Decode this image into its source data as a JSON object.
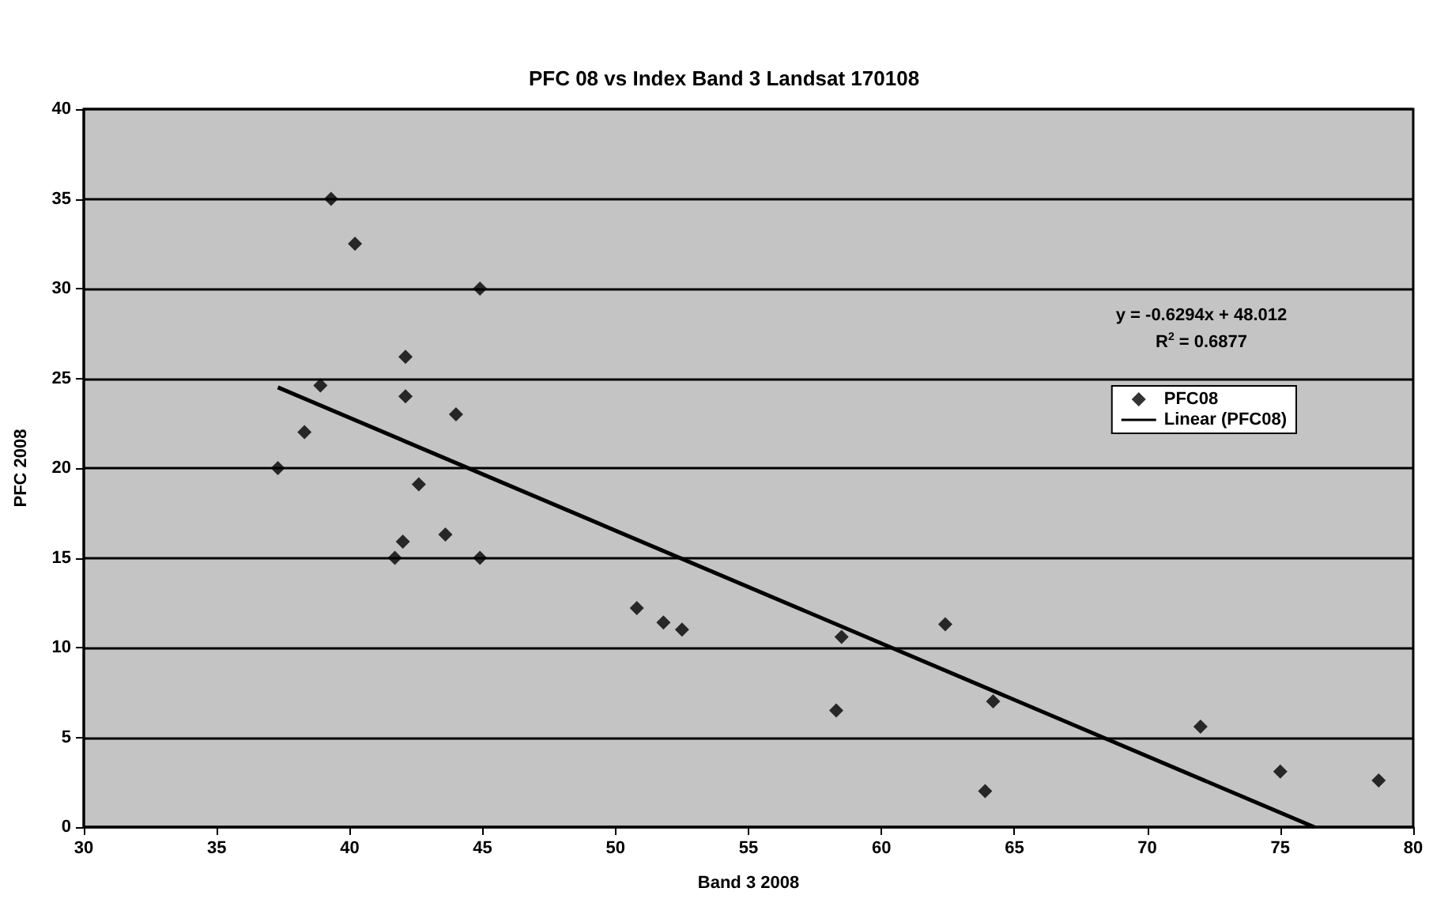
{
  "chart_data": {
    "type": "scatter",
    "title": "PFC 08 vs Index Band 3 Landsat 170108",
    "xlabel": "Band 3 2008",
    "ylabel": "PFC 2008",
    "series": [
      {
        "name": "PFC08",
        "type": "scatter",
        "color": "#000000",
        "marker": "diamond",
        "x": [
          39.3,
          40.2,
          44.9,
          42.1,
          38.9,
          42.1,
          44.0,
          38.3,
          37.3,
          42.6,
          42.0,
          41.7,
          43.6,
          44.9,
          50.8,
          51.8,
          52.5,
          58.5,
          62.4,
          58.3,
          64.2,
          63.9,
          72.0,
          75.0,
          78.7
        ],
        "values": [
          35,
          32.5,
          30,
          26.2,
          24.6,
          24.0,
          23.0,
          22.0,
          20.0,
          19.1,
          15.9,
          15.0,
          16.3,
          15.0,
          12.2,
          11.4,
          11.0,
          10.6,
          11.3,
          6.5,
          7.0,
          2.0,
          5.6,
          3.1,
          2.6
        ]
      },
      {
        "name": "Linear (PFC08)",
        "type": "line",
        "color": "#000000",
        "marker": "none",
        "line_style": "solid",
        "x": [
          37.3,
          76.28
        ],
        "values": [
          24.5,
          0.0
        ]
      }
    ],
    "annotations": [
      "y = -0.6294x + 48.012",
      "R$^{2}$ = 0.6877"
    ],
    "xlim": [
      30,
      80
    ],
    "xticks": [
      30,
      35,
      40,
      45,
      50,
      55,
      60,
      65,
      70,
      75,
      80
    ],
    "ylim": [
      0,
      40
    ],
    "yticks": [
      0,
      5,
      10,
      15,
      20,
      25,
      30,
      35,
      40
    ],
    "grid": "y",
    "legend": "top right"
  }
}
